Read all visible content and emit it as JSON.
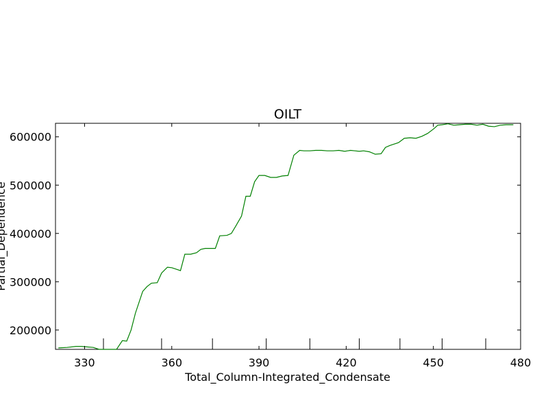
{
  "chart_data": {
    "type": "line",
    "title": "OILT",
    "xlabel": "Total_Column-Integrated_Condensate",
    "ylabel": "Partial_Dependence",
    "xlim": [
      320,
      480
    ],
    "ylim": [
      160000,
      628000
    ],
    "x_ticks": [
      330,
      360,
      390,
      420,
      450,
      480
    ],
    "y_ticks": [
      200000,
      300000,
      400000,
      500000,
      600000
    ],
    "x_tick_labels": [
      "330",
      "360",
      "390",
      "420",
      "450",
      "480"
    ],
    "y_tick_labels": [
      "200000",
      "300000",
      "400000",
      "500000",
      "600000"
    ],
    "rug_x": [
      336.5,
      356.5,
      374,
      392.5,
      407.5,
      424.5,
      438.5,
      453,
      468
    ],
    "colors": {
      "line": "#008000",
      "axes": "#000000"
    },
    "series": [
      {
        "x": [
          321,
          324,
          327,
          329,
          331,
          333,
          335,
          337,
          339,
          341,
          343,
          344.5,
          346,
          347.5,
          350,
          351.5,
          353,
          355,
          356.5,
          358.5,
          360,
          361.5,
          363,
          364.5,
          366.5,
          368.5,
          370,
          371.5,
          373,
          375,
          376.5,
          379,
          380.5,
          382,
          384,
          385.5,
          387,
          388.5,
          390,
          392,
          394,
          396,
          398,
          400,
          402,
          404,
          405.5,
          407.5,
          409.5,
          411.5,
          413.5,
          415.5,
          417.5,
          419.5,
          421.5,
          423,
          424.5,
          426,
          428,
          430,
          432,
          433.5,
          435,
          436.5,
          438,
          440,
          442,
          444,
          446,
          448,
          450,
          451.5,
          453,
          455,
          457,
          459,
          461,
          463,
          465,
          467,
          469,
          471,
          473,
          475,
          477.5
        ],
        "y": [
          163000,
          164000,
          166000,
          166000,
          165000,
          164000,
          160000,
          160000,
          160000,
          160000,
          178000,
          177000,
          200000,
          235000,
          280000,
          290000,
          297000,
          298000,
          318000,
          330000,
          329000,
          326000,
          323000,
          357000,
          357000,
          360000,
          367000,
          369000,
          369000,
          369000,
          395000,
          396000,
          400000,
          415000,
          436000,
          477000,
          477000,
          507000,
          520000,
          520000,
          516000,
          516000,
          519000,
          520000,
          562000,
          572000,
          571000,
          571000,
          572000,
          572000,
          571000,
          571000,
          572000,
          570000,
          572000,
          571000,
          570000,
          571000,
          569000,
          564000,
          565000,
          578000,
          582000,
          585000,
          588000,
          597000,
          598000,
          597000,
          601000,
          607000,
          616000,
          624000,
          625000,
          627000,
          624000,
          625000,
          626000,
          626000,
          624000,
          626000,
          622000,
          621000,
          624000,
          625000,
          625000
        ]
      }
    ]
  }
}
